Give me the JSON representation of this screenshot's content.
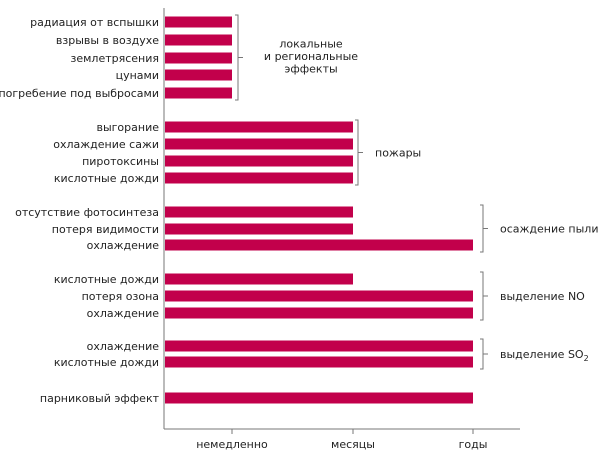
{
  "chart_data": {
    "type": "bar",
    "orientation": "horizontal",
    "title": "",
    "xlabel": "",
    "ylabel": "",
    "x_ticks": [
      "немедленно",
      "месяцы",
      "годы"
    ],
    "value_scale": "ordinal: 1 = немедленно, 2 = месяцы, 3 = годы",
    "bar_color": "#c2004b",
    "groups": [
      {
        "label": [
          "локальные",
          "и региональные",
          "эффекты"
        ],
        "items": [
          {
            "name": "радиация от вспышки",
            "value": 1
          },
          {
            "name": "взрывы в воздухе",
            "value": 1
          },
          {
            "name": "землетрясения",
            "value": 1
          },
          {
            "name": "цунами",
            "value": 1
          },
          {
            "name": "погребение под выбросами",
            "value": 1
          }
        ]
      },
      {
        "label": [
          "пожары"
        ],
        "items": [
          {
            "name": "выгорание",
            "value": 2
          },
          {
            "name": "охлаждение сажи",
            "value": 2
          },
          {
            "name": "пиротоксины",
            "value": 2
          },
          {
            "name": "кислотные дожди",
            "value": 2
          }
        ]
      },
      {
        "label": [
          "осаждение пыли"
        ],
        "items": [
          {
            "name": "отсутствие фотосинтеза",
            "value": 2
          },
          {
            "name": "потеря видимости",
            "value": 2
          },
          {
            "name": "охлаждение",
            "value": 3
          }
        ]
      },
      {
        "label": [
          "выделение NO"
        ],
        "items": [
          {
            "name": "кислотные дожди",
            "value": 2
          },
          {
            "name": "потеря озона",
            "value": 3
          },
          {
            "name": "охлаждение",
            "value": 3
          }
        ]
      },
      {
        "label": [
          "выделение SO",
          "2"
        ],
        "subscript": true,
        "items": [
          {
            "name": "охлаждение",
            "value": 3
          },
          {
            "name": "кислотные дожди",
            "value": 3
          }
        ]
      },
      {
        "label": [],
        "items": [
          {
            "name": "парниковый эффект",
            "value": 3
          }
        ]
      }
    ]
  }
}
